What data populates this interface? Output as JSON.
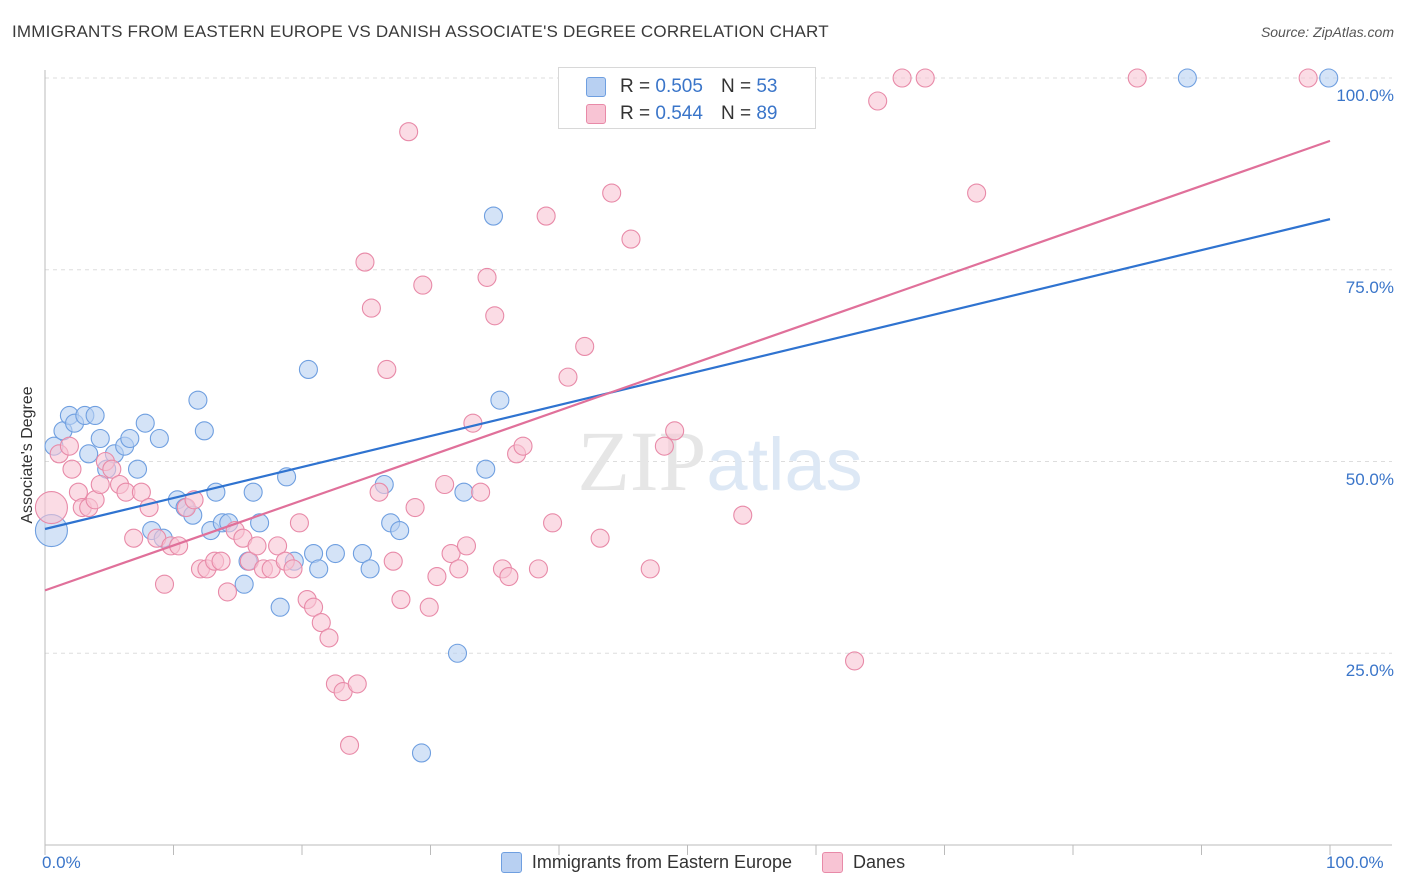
{
  "chart_data": {
    "type": "scatter",
    "title": "IMMIGRANTS FROM EASTERN EUROPE VS DANISH ASSOCIATE'S DEGREE CORRELATION CHART",
    "source": "Source: ZipAtlas.com",
    "xlabel": "",
    "ylabel": "Associate's Degree",
    "xlim": [
      0,
      100
    ],
    "ylim": [
      0,
      100
    ],
    "x_tick_labels": {
      "left": "0.0%",
      "right": "100.0%"
    },
    "y_tick_labels": [
      "100.0%",
      "75.0%",
      "50.0%",
      "25.0%"
    ],
    "y_tick_values": [
      100,
      75,
      50,
      25
    ],
    "grid": true,
    "watermark": "ZIPatlas",
    "series": [
      {
        "name": "Immigrants from Eastern Europe",
        "color": "#6f9fe0",
        "fill": "#b8d0f2",
        "r_label": "R =",
        "r_value": "0.505",
        "n_label": "N =",
        "n_value": "53",
        "trend": {
          "x0": 0,
          "y0": 41.2,
          "x1": 100,
          "y1": 81.6
        },
        "points": [
          [
            0.5,
            41,
            16
          ],
          [
            0.7,
            52,
            9
          ],
          [
            1.4,
            54,
            9
          ],
          [
            1.9,
            56,
            9
          ],
          [
            2.3,
            55,
            9
          ],
          [
            3.1,
            56,
            9
          ],
          [
            3.4,
            51,
            9
          ],
          [
            3.9,
            56,
            9
          ],
          [
            4.3,
            53,
            9
          ],
          [
            4.8,
            49,
            9
          ],
          [
            5.4,
            51,
            9
          ],
          [
            6.2,
            52,
            9
          ],
          [
            6.6,
            53,
            9
          ],
          [
            7.2,
            49,
            9
          ],
          [
            7.8,
            55,
            9
          ],
          [
            8.3,
            41,
            9
          ],
          [
            8.9,
            53,
            9
          ],
          [
            9.2,
            40,
            9
          ],
          [
            10.3,
            45,
            9
          ],
          [
            10.9,
            44,
            9
          ],
          [
            11.5,
            43,
            9
          ],
          [
            11.9,
            58,
            9
          ],
          [
            12.4,
            54,
            9
          ],
          [
            12.9,
            41,
            9
          ],
          [
            13.3,
            46,
            9
          ],
          [
            13.8,
            42,
            9
          ],
          [
            14.3,
            42,
            9
          ],
          [
            15.5,
            34,
            9
          ],
          [
            15.8,
            37,
            9
          ],
          [
            16.2,
            46,
            9
          ],
          [
            16.7,
            42,
            9
          ],
          [
            18.3,
            31,
            9
          ],
          [
            18.8,
            48,
            9
          ],
          [
            19.4,
            37,
            9
          ],
          [
            20.5,
            62,
            9
          ],
          [
            20.9,
            38,
            9
          ],
          [
            21.3,
            36,
            9
          ],
          [
            22.6,
            38,
            9
          ],
          [
            24.7,
            38,
            9
          ],
          [
            25.3,
            36,
            9
          ],
          [
            26.4,
            47,
            9
          ],
          [
            26.9,
            42,
            9
          ],
          [
            27.6,
            41,
            9
          ],
          [
            29.3,
            12,
            9
          ],
          [
            32.1,
            25,
            9
          ],
          [
            32.6,
            46,
            9
          ],
          [
            34.3,
            49,
            9
          ],
          [
            34.9,
            82,
            9
          ],
          [
            35.4,
            58,
            9
          ],
          [
            88.9,
            100,
            9
          ],
          [
            99.9,
            100,
            9
          ]
        ]
      },
      {
        "name": "Danes",
        "color": "#e88aa8",
        "fill": "#f8c4d4",
        "r_label": "R =",
        "r_value": "0.544",
        "n_label": "N =",
        "n_value": "89",
        "trend": {
          "x0": 0,
          "y0": 33.2,
          "x1": 100,
          "y1": 91.8
        },
        "points": [
          [
            0.5,
            44,
            16
          ],
          [
            1.1,
            51,
            9
          ],
          [
            1.9,
            52,
            9
          ],
          [
            2.1,
            49,
            9
          ],
          [
            2.6,
            46,
            9
          ],
          [
            2.9,
            44,
            9
          ],
          [
            3.4,
            44,
            9
          ],
          [
            3.9,
            45,
            9
          ],
          [
            4.3,
            47,
            9
          ],
          [
            4.7,
            50,
            9
          ],
          [
            5.2,
            49,
            9
          ],
          [
            5.8,
            47,
            9
          ],
          [
            6.3,
            46,
            9
          ],
          [
            6.9,
            40,
            9
          ],
          [
            7.5,
            46,
            9
          ],
          [
            8.1,
            44,
            9
          ],
          [
            8.7,
            40,
            9
          ],
          [
            9.3,
            34,
            9
          ],
          [
            9.8,
            39,
            9
          ],
          [
            10.4,
            39,
            9
          ],
          [
            11.0,
            44,
            9
          ],
          [
            11.6,
            45,
            9
          ],
          [
            12.1,
            36,
            9
          ],
          [
            12.6,
            36,
            9
          ],
          [
            13.2,
            37,
            9
          ],
          [
            13.7,
            37,
            9
          ],
          [
            14.2,
            33,
            9
          ],
          [
            14.8,
            41,
            9
          ],
          [
            15.4,
            40,
            9
          ],
          [
            15.9,
            37,
            9
          ],
          [
            16.5,
            39,
            9
          ],
          [
            17.0,
            36,
            9
          ],
          [
            17.6,
            36,
            9
          ],
          [
            18.1,
            39,
            9
          ],
          [
            18.7,
            37,
            9
          ],
          [
            19.3,
            36,
            9
          ],
          [
            19.8,
            42,
            9
          ],
          [
            20.4,
            32,
            9
          ],
          [
            20.9,
            31,
            9
          ],
          [
            21.5,
            29,
            9
          ],
          [
            22.1,
            27,
            9
          ],
          [
            22.6,
            21,
            9
          ],
          [
            23.2,
            20,
            9
          ],
          [
            23.7,
            13,
            9
          ],
          [
            24.3,
            21,
            9
          ],
          [
            24.9,
            76,
            9
          ],
          [
            25.4,
            70,
            9
          ],
          [
            26.0,
            46,
            9
          ],
          [
            26.6,
            62,
            9
          ],
          [
            27.1,
            37,
            9
          ],
          [
            27.7,
            32,
            9
          ],
          [
            28.3,
            93,
            9
          ],
          [
            28.8,
            44,
            9
          ],
          [
            29.4,
            73,
            9
          ],
          [
            29.9,
            31,
            9
          ],
          [
            30.5,
            35,
            9
          ],
          [
            31.1,
            47,
            9
          ],
          [
            31.6,
            38,
            9
          ],
          [
            32.2,
            36,
            9
          ],
          [
            32.8,
            39,
            9
          ],
          [
            33.3,
            55,
            9
          ],
          [
            33.9,
            46,
            9
          ],
          [
            34.4,
            74,
            9
          ],
          [
            35.0,
            69,
            9
          ],
          [
            35.6,
            36,
            9
          ],
          [
            36.1,
            35,
            9
          ],
          [
            36.7,
            51,
            9
          ],
          [
            37.2,
            52,
            9
          ],
          [
            38.4,
            36,
            9
          ],
          [
            39.0,
            82,
            9
          ],
          [
            39.5,
            42,
            9
          ],
          [
            40.7,
            61,
            9
          ],
          [
            42.0,
            65,
            9
          ],
          [
            43.2,
            40,
            9
          ],
          [
            44.1,
            85,
            9
          ],
          [
            45.6,
            79,
            9
          ],
          [
            47.1,
            36,
            9
          ],
          [
            48.2,
            52,
            9
          ],
          [
            49.0,
            54,
            9
          ],
          [
            54.3,
            43,
            9
          ],
          [
            63.0,
            24,
            9
          ],
          [
            64.8,
            97,
            9
          ],
          [
            66.7,
            100,
            9
          ],
          [
            68.5,
            100,
            9
          ],
          [
            72.5,
            85,
            9
          ],
          [
            85.0,
            100,
            9
          ],
          [
            98.3,
            100,
            9
          ]
        ]
      }
    ]
  }
}
